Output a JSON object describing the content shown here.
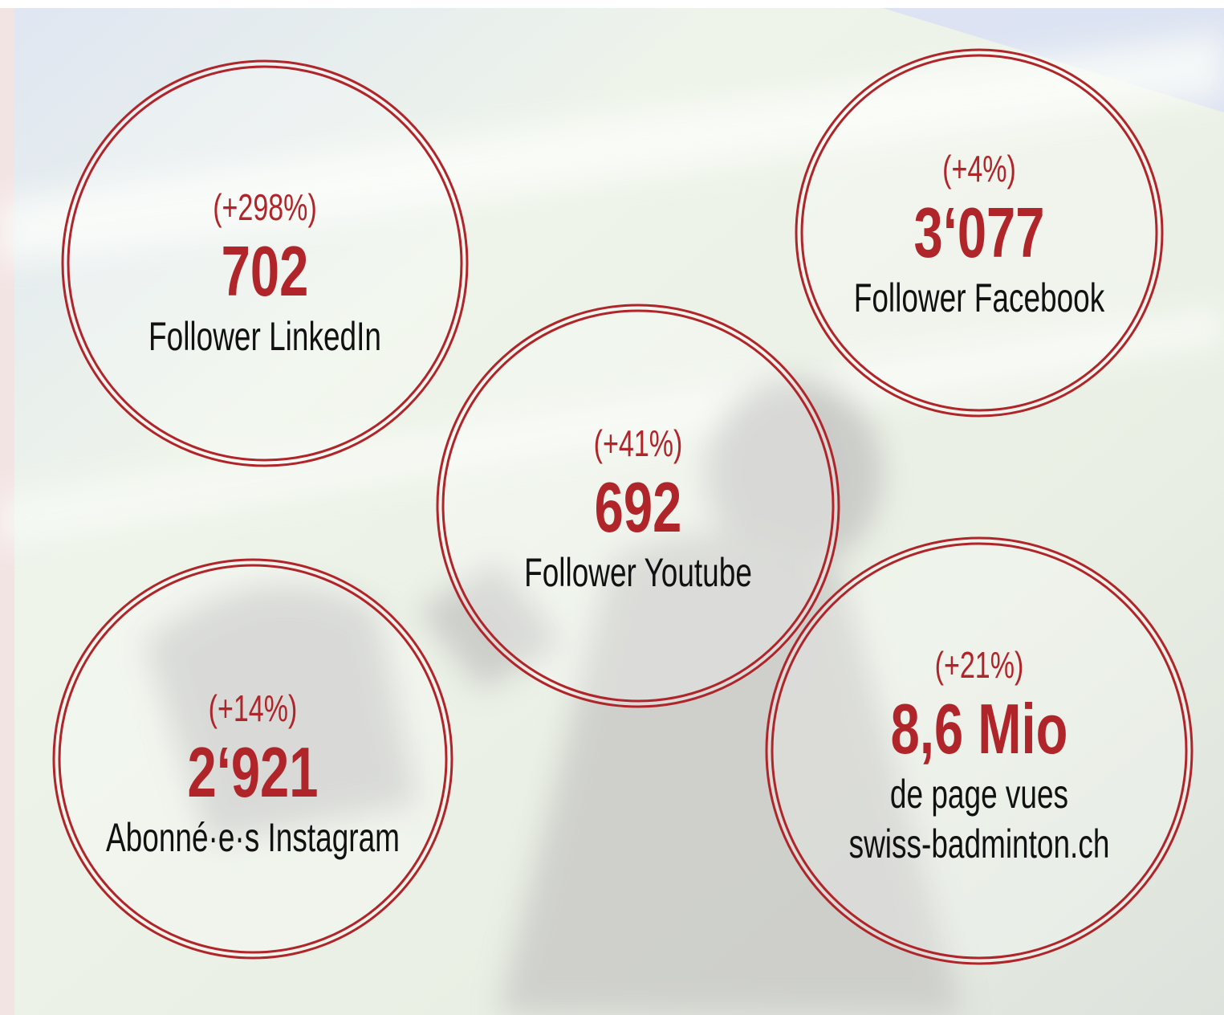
{
  "stats": [
    {
      "change": "(+298%)",
      "value": "702",
      "label": [
        "Follower LinkedIn"
      ]
    },
    {
      "change": "(+4%)",
      "value": "3‘077",
      "label": [
        "Follower Facebook"
      ]
    },
    {
      "change": "(+41%)",
      "value": "692",
      "label": [
        "Follower Youtube"
      ]
    },
    {
      "change": "(+14%)",
      "value": "2‘921",
      "label": [
        "Abonné·e·s Instagram"
      ]
    },
    {
      "change": "(+21%)",
      "value": "8,6 Mio",
      "label": [
        "de page vues",
        "swiss-badminton.ch"
      ]
    }
  ]
}
